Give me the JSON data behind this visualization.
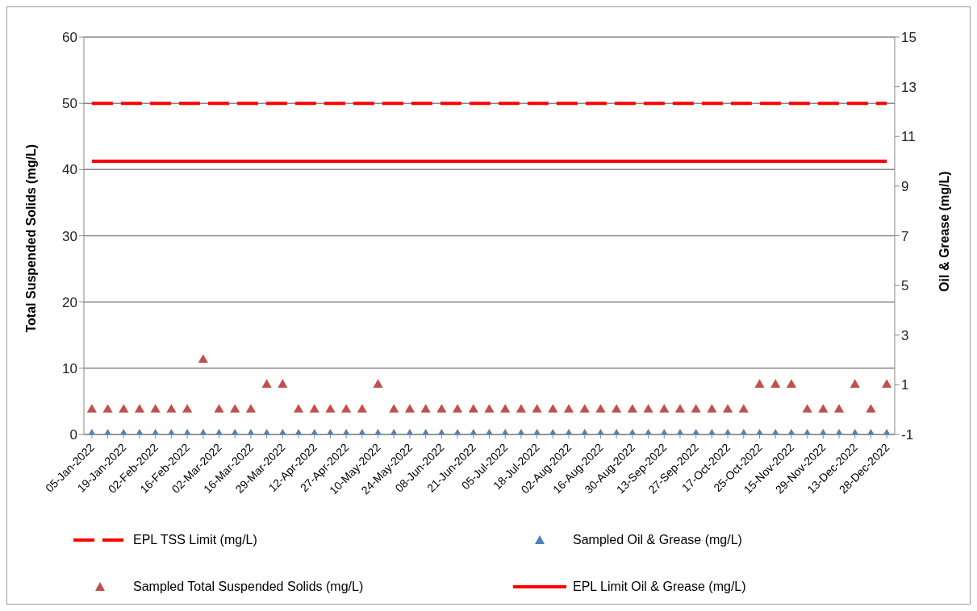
{
  "chart_data": {
    "type": "scatter",
    "ylabel": "Total Suspended Solids  (mg/L)",
    "y2label": "Oil & Grease (mg/L)",
    "categories": [
      "05-Jan-2022",
      null,
      "19-Jan-2022",
      null,
      "02-Feb-2022",
      null,
      "16-Feb-2022",
      null,
      "02-Mar-2022",
      null,
      "16-Mar-2022",
      null,
      "29-Mar-2022",
      null,
      "12-Apr-2022",
      null,
      "27-Apr-2022",
      null,
      "10-May-2022",
      null,
      "24-May-2022",
      null,
      "08-Jun-2022",
      null,
      "21-Jun-2022",
      null,
      "05-Jul-2022",
      null,
      "18-Jul-2022",
      null,
      "02-Aug-2022",
      null,
      "16-Aug-2022",
      null,
      "30-Aug-2022",
      null,
      "13-Sep-2022",
      null,
      "27-Sep-2022",
      null,
      "17-Oct-2022",
      null,
      "25-Oct-2022",
      null,
      "15-Nov-2022",
      null,
      "29-Nov-2022",
      null,
      "13-Dec-2022",
      null,
      "28-Dec-2022"
    ],
    "series": [
      {
        "name": "EPL TSS Limit (mg/L)",
        "type": "line",
        "color": "#ff0000",
        "line_style": "dashed",
        "marker": "none",
        "values": [
          50,
          50,
          50,
          50,
          50,
          50,
          50,
          50,
          50,
          50,
          50,
          50,
          50,
          50,
          50,
          50,
          50,
          50,
          50,
          50,
          50,
          50,
          50,
          50,
          50,
          50,
          50,
          50,
          50,
          50,
          50,
          50,
          50,
          50,
          50,
          50,
          50,
          50,
          50,
          50,
          50,
          50,
          50,
          50,
          50,
          50,
          50,
          50,
          50,
          50,
          50
        ]
      },
      {
        "name": "Sampled Oil & Grease (mg/L)",
        "color": "#4f81bd",
        "marker": "triangle",
        "values": [
          0,
          0,
          0,
          0,
          0,
          0,
          0,
          0,
          0,
          0,
          0,
          0,
          0,
          0,
          0,
          0,
          0,
          0,
          0,
          0,
          0,
          0,
          0,
          0,
          0,
          0,
          0,
          0,
          0,
          0,
          0,
          0,
          0,
          0,
          0,
          0,
          0,
          0,
          0,
          0,
          0,
          0,
          0,
          0,
          0,
          0,
          0,
          0,
          0,
          0,
          0
        ]
      },
      {
        "name": "Sampled Total Suspended Solids (mg/L)",
        "color": "#c0504d",
        "marker": "triangle",
        "axis": "y2",
        "values": [
          0,
          0,
          0,
          0,
          0,
          0,
          0,
          2,
          0,
          0,
          0,
          1,
          1,
          0,
          0,
          0,
          0,
          0,
          1,
          0,
          0,
          0,
          0,
          0,
          0,
          0,
          0,
          0,
          0,
          0,
          0,
          0,
          0,
          0,
          0,
          0,
          0,
          0,
          0,
          0,
          0,
          0,
          1,
          1,
          1,
          0,
          0,
          0,
          1,
          0,
          1
        ]
      },
      {
        "name": "EPL Limit Oil & Grease (mg/L)",
        "type": "line",
        "color": "#ff0000",
        "line_style": "solid",
        "marker": "none",
        "axis": "y2",
        "values": [
          10,
          10,
          10,
          10,
          10,
          10,
          10,
          10,
          10,
          10,
          10,
          10,
          10,
          10,
          10,
          10,
          10,
          10,
          10,
          10,
          10,
          10,
          10,
          10,
          10,
          10,
          10,
          10,
          10,
          10,
          10,
          10,
          10,
          10,
          10,
          10,
          10,
          10,
          10,
          10,
          10,
          10,
          10,
          10,
          10,
          10,
          10,
          10,
          10,
          10,
          10
        ]
      }
    ],
    "ylim": [
      0,
      60
    ],
    "yticks": [
      0,
      10,
      20,
      30,
      40,
      50,
      60
    ],
    "y2lim": [
      -1,
      15
    ],
    "y2ticks": [
      -1,
      1,
      3,
      5,
      7,
      9,
      11,
      13,
      15
    ],
    "grid": "y",
    "legend": "bottom"
  }
}
